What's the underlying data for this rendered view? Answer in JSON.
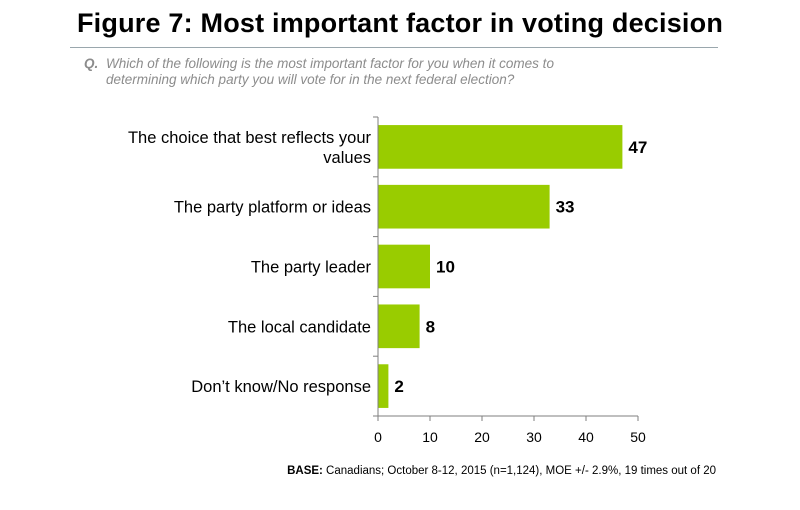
{
  "title": "Figure 7: Most important factor in voting decision",
  "question": {
    "label": "Q.",
    "line1": "Which of the following is the most important factor for you when it comes to",
    "line2": "determining which party you will vote for in the next federal election?"
  },
  "chart_data": {
    "type": "bar",
    "orientation": "horizontal",
    "categories": [
      [
        "The choice that best reflects your",
        "values"
      ],
      [
        "The party platform or ideas"
      ],
      [
        "The party leader"
      ],
      [
        "The local candidate"
      ],
      [
        "Don’t know/No response"
      ]
    ],
    "values": [
      47,
      33,
      10,
      8,
      2
    ],
    "xlim": [
      0,
      50
    ],
    "xticks": [
      0,
      10,
      20,
      30,
      40,
      50
    ],
    "bar_color": "#99cc00",
    "grid": false
  },
  "base": {
    "label": "BASE:",
    "text": " Canadians; October 8-12, 2015 (n=1,124), MOE +/- 2.9%, 19 times out of 20"
  }
}
